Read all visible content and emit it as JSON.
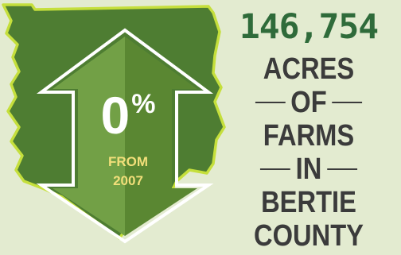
{
  "stat": {
    "value": "146,754",
    "caption_lines": [
      "ACRES",
      "OF",
      "FARMS",
      "IN",
      "BERTIE",
      "COUNTY"
    ]
  },
  "change": {
    "percent": "0",
    "sign": "%",
    "from_lines": [
      "FROM",
      "2007"
    ],
    "direction": "up-down-arrow-icon"
  },
  "colors": {
    "background": "#e3ebd0",
    "county_fill": "#4e7d32",
    "county_outline": "#c5df3c",
    "arrow_light": "#72a046",
    "arrow_dark": "#5a8732",
    "number_green": "#2f6b3a",
    "caption_gray": "#3b3b3b",
    "from_text": "#f2df7a"
  }
}
